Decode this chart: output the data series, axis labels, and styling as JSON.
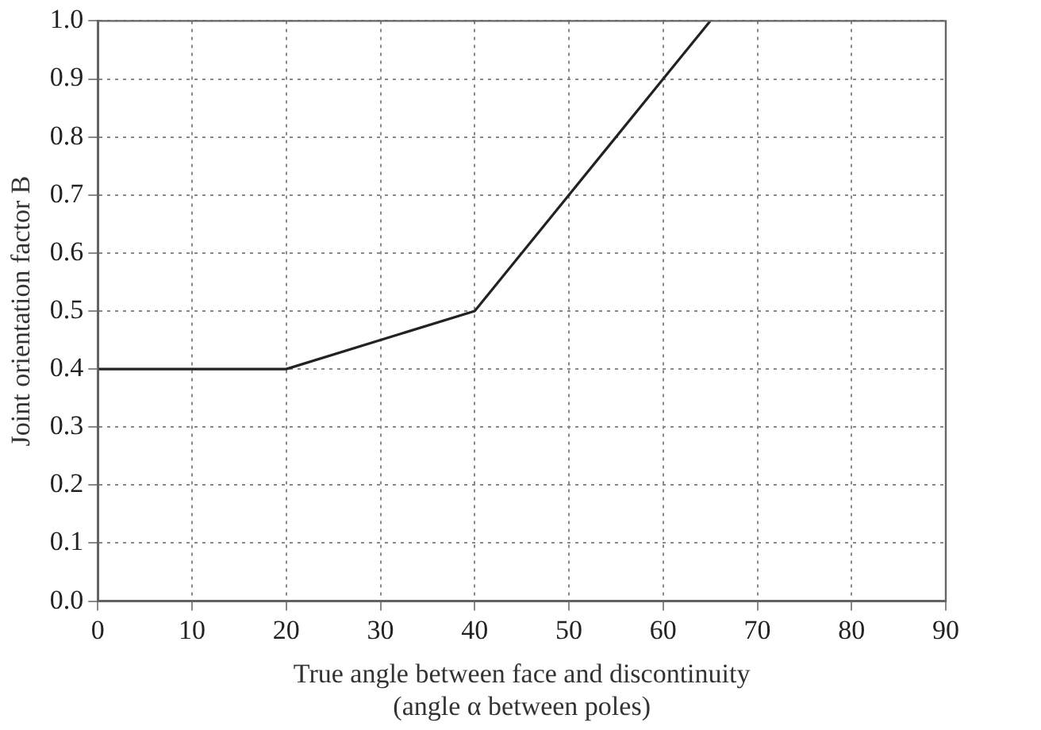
{
  "chart_data": {
    "type": "line",
    "xlabel": "True angle between face and discontinuity\n(angle α between poles)",
    "ylabel": "Joint orientation factor B",
    "x": [
      0,
      20,
      40,
      60,
      65
    ],
    "series": [
      {
        "color": "#222222",
        "values": [
          0.4,
          0.4,
          0.5,
          0.9,
          1.0
        ]
      }
    ],
    "xlim": [
      0,
      90
    ],
    "xticks": [
      0,
      10,
      20,
      30,
      40,
      50,
      60,
      70,
      80,
      90
    ],
    "ylim": [
      0,
      1
    ],
    "yticks": [
      {
        "value": 0,
        "label": "0.0"
      },
      0.1,
      0.2,
      0.3,
      0.4,
      0.5,
      0.6,
      0.7,
      0.8,
      0.9,
      {
        "value": 1,
        "label": "1.0"
      }
    ],
    "grid": true,
    "legend": false,
    "marker": "none",
    "line_style": "solid"
  }
}
